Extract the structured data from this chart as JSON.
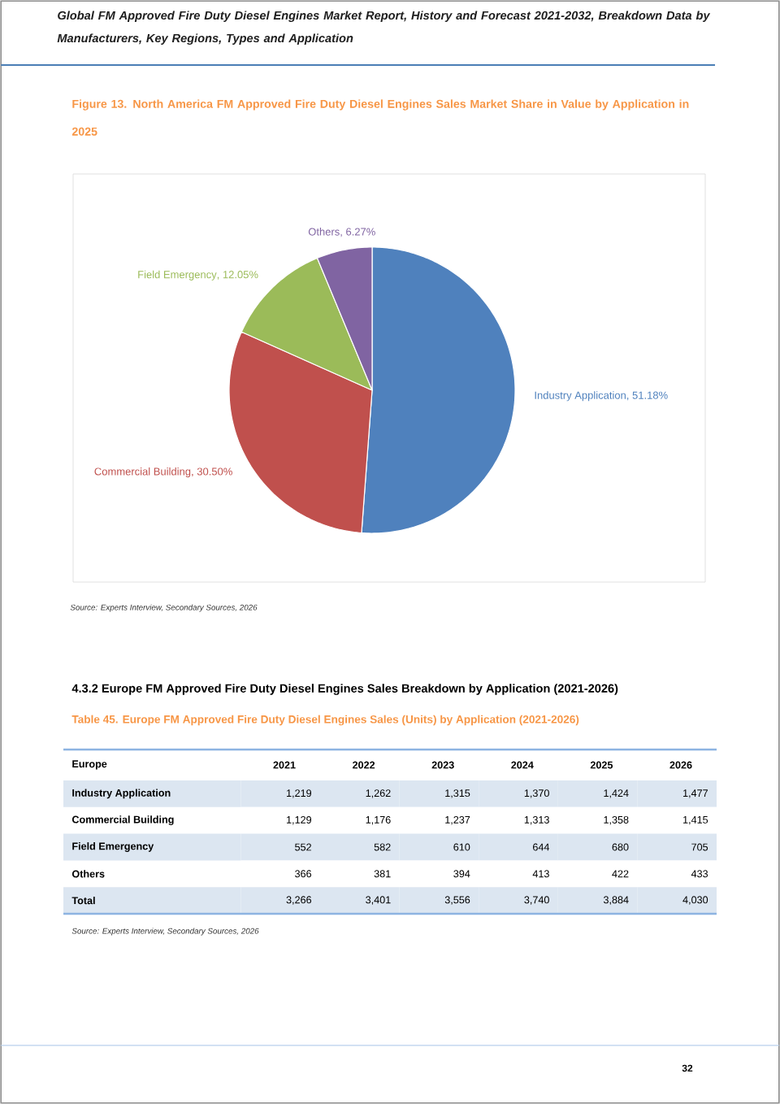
{
  "chart_data": [
    {
      "type": "pie",
      "title": "Figure 13. North America FM Approved Fire Duty Diesel Engines Sales Market Share in Value by Application in 2025",
      "categories": [
        "Industry Application",
        "Commercial Building",
        "Field Emergency",
        "Others"
      ],
      "values": [
        51.18,
        30.5,
        12.05,
        6.27
      ],
      "value_labels": [
        ", 51.18%",
        ", 30.50%",
        ", 12.05%",
        ", 6.27%"
      ],
      "colors": [
        "#4f81bd",
        "#c0504d",
        "#9bbb59",
        "#8064a2"
      ],
      "annotations": [
        "Global FM Approved Fire Duty Diesel Engines Market Report, History and Forecast 2021-2032, Breakdown Data by Manufacturers, Key Regions, Types and Application",
        "Source: Experts Interview, Secondary Sources, 2026"
      ]
    },
    {
      "type": "heatmap",
      "title": "4.3.2 Europe FM Approved Fire Duty Diesel Engines Sales Breakdown by Application (2021-2026)",
      "subtitle": "Table 45. Europe FM Approved Fire Duty Diesel Engines Sales (Units) by Application (2021-2026)",
      "ylabel": "Europe",
      "categories": [
        "2021",
        "2022",
        "2023",
        "2024",
        "2025",
        "2026"
      ],
      "y_categories": [
        "Industry Application",
        "Commercial Building",
        "Field Emergency",
        "Others",
        "Total"
      ],
      "cells": [
        [
          1219,
          1262,
          1315,
          1370,
          1424,
          1477
        ],
        [
          1129,
          1176,
          1237,
          1313,
          1358,
          1415
        ],
        [
          552,
          582,
          610,
          644,
          680,
          705
        ],
        [
          366,
          381,
          394,
          413,
          422,
          433
        ],
        [
          3266,
          3401,
          3556,
          3740,
          3884,
          4030
        ]
      ],
      "cell_labels": [
        [
          "1,219",
          "1,262",
          "1,315",
          "1,370",
          "1,424",
          "1,477"
        ],
        [
          "1,129",
          "1,176",
          "1,237",
          "1,313",
          "1,358",
          "1,415"
        ],
        [
          "552",
          "582",
          "610",
          "644",
          "680",
          "705"
        ],
        [
          "366",
          "381",
          "394",
          "413",
          "422",
          "433"
        ],
        [
          "3,266",
          "3,401",
          "3,556",
          "3,740",
          "3,884",
          "4,030"
        ]
      ],
      "annotations": [
        "Source: Experts Interview, Secondary Sources, 2026",
        "32"
      ]
    }
  ]
}
